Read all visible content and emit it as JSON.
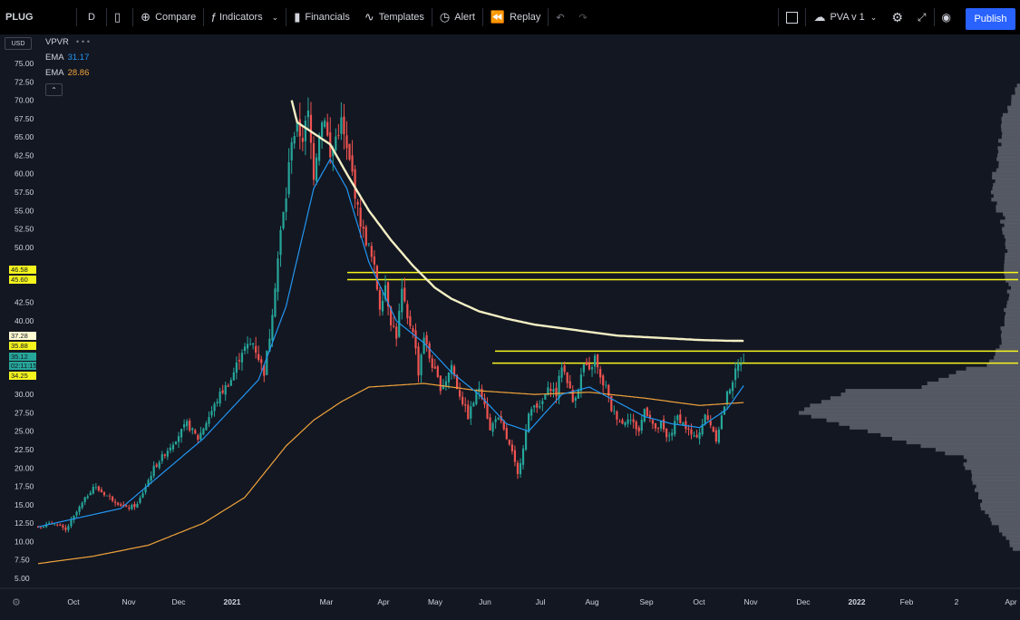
{
  "toolbar": {
    "symbol": "PLUG",
    "interval": "D",
    "compare": "Compare",
    "indicators": "Indicators",
    "financials": "Financials",
    "templates": "Templates",
    "alert": "Alert",
    "replay": "Replay",
    "layout_name": "PVA v 1",
    "publish": "Publish"
  },
  "legend": {
    "currency": "USD",
    "vpvr": "VPVR",
    "vpvr_dots": "• • •",
    "ema1_label": "EMA",
    "ema1_value": "31.17",
    "ema2_label": "EMA",
    "ema2_value": "28.86"
  },
  "price_tags": [
    {
      "text": "46.58",
      "price": 46.58,
      "bg": "#f5f51e"
    },
    {
      "text": "45.60",
      "price": 45.6,
      "bg": "#f5f51e"
    },
    {
      "text": "37.28",
      "price": 37.28,
      "bg": "#fffbd2"
    },
    {
      "text": "35.88",
      "price": 35.88,
      "bg": "#f5f51e"
    },
    {
      "text": "35.12",
      "price": 35.12,
      "bg": "#26a69a"
    },
    {
      "text": "02:11:15",
      "price": 34.0,
      "bg": "#26a69a"
    },
    {
      "text": "34.25",
      "price": 33.0,
      "bg": "#f5f51e"
    }
  ],
  "colors": {
    "bg": "#131722",
    "up": "#26a69a",
    "down": "#ef5350",
    "ema_fast": "#2196f3",
    "ema_slow": "#f0a33a",
    "sma_long": "#f3efc4",
    "hline": "#f5f51e",
    "vpvr": "#6b6f78"
  },
  "chart_data": {
    "type": "candlestick",
    "y_ticks": [
      "75.00",
      "72.50",
      "70.00",
      "67.50",
      "65.00",
      "62.50",
      "60.00",
      "57.50",
      "55.00",
      "52.50",
      "50.00",
      "42.50",
      "40.00",
      "30.00",
      "27.50",
      "25.00",
      "22.50",
      "20.00",
      "17.50",
      "15.00",
      "12.50",
      "10.00",
      "7.50",
      "5.00"
    ],
    "x_labels": [
      "Oct",
      "Nov",
      "Dec",
      "2021",
      "Mar",
      "Apr",
      "May",
      "Jun",
      "Jul",
      "Aug",
      "Sep",
      "Oct",
      "Nov",
      "Dec",
      "2022",
      "Feb",
      "2",
      "Apr"
    ],
    "ylim": [
      2.5,
      78
    ],
    "price_levels": [
      46.58,
      45.6,
      35.88,
      34.25
    ],
    "ema_fast_last": 31.17,
    "ema_slow_last": 28.86,
    "close_anchors": [
      [
        0,
        12
      ],
      [
        6,
        12.5
      ],
      [
        10,
        11.5
      ],
      [
        14,
        14
      ],
      [
        20,
        17.5
      ],
      [
        26,
        16
      ],
      [
        32,
        14.5
      ],
      [
        36,
        15
      ],
      [
        42,
        20
      ],
      [
        48,
        23
      ],
      [
        54,
        26
      ],
      [
        58,
        24
      ],
      [
        62,
        27
      ],
      [
        66,
        30
      ],
      [
        70,
        32
      ],
      [
        74,
        36
      ],
      [
        78,
        37
      ],
      [
        82,
        33
      ],
      [
        84,
        38
      ],
      [
        86,
        45
      ],
      [
        88,
        52
      ],
      [
        90,
        57
      ],
      [
        92,
        65
      ],
      [
        94,
        66
      ],
      [
        96,
        65
      ],
      [
        98,
        68
      ],
      [
        100,
        60
      ],
      [
        102,
        66
      ],
      [
        104,
        68
      ],
      [
        106,
        62
      ],
      [
        108,
        65
      ],
      [
        110,
        67
      ],
      [
        112,
        63
      ],
      [
        114,
        60
      ],
      [
        116,
        55
      ],
      [
        118,
        52
      ],
      [
        120,
        50
      ],
      [
        122,
        47
      ],
      [
        124,
        42
      ],
      [
        126,
        45
      ],
      [
        128,
        40
      ],
      [
        130,
        38
      ],
      [
        132,
        44
      ],
      [
        134,
        40
      ],
      [
        136,
        39
      ],
      [
        138,
        33
      ],
      [
        140,
        38
      ],
      [
        142,
        35
      ],
      [
        144,
        33
      ],
      [
        146,
        31
      ],
      [
        148,
        32
      ],
      [
        150,
        34
      ],
      [
        152,
        31
      ],
      [
        154,
        29
      ],
      [
        156,
        27
      ],
      [
        158,
        29
      ],
      [
        160,
        31
      ],
      [
        162,
        29
      ],
      [
        164,
        25
      ],
      [
        166,
        27
      ],
      [
        168,
        26
      ],
      [
        170,
        24
      ],
      [
        172,
        22
      ],
      [
        174,
        19
      ],
      [
        176,
        23
      ],
      [
        178,
        27
      ],
      [
        180,
        29
      ],
      [
        182,
        28
      ],
      [
        184,
        30
      ],
      [
        186,
        31
      ],
      [
        188,
        30
      ],
      [
        190,
        34
      ],
      [
        192,
        32
      ],
      [
        194,
        29
      ],
      [
        196,
        31
      ],
      [
        198,
        34
      ],
      [
        200,
        33
      ],
      [
        202,
        35
      ],
      [
        204,
        32
      ],
      [
        206,
        31
      ],
      [
        208,
        28
      ],
      [
        210,
        27
      ],
      [
        212,
        26
      ],
      [
        214,
        27
      ],
      [
        216,
        26
      ],
      [
        218,
        25
      ],
      [
        220,
        28
      ],
      [
        222,
        27
      ],
      [
        224,
        25
      ],
      [
        226,
        26
      ],
      [
        228,
        24
      ],
      [
        230,
        25
      ],
      [
        232,
        27
      ],
      [
        234,
        26
      ],
      [
        236,
        25
      ],
      [
        238,
        24
      ],
      [
        240,
        25
      ],
      [
        242,
        27
      ],
      [
        244,
        26
      ],
      [
        246,
        24
      ],
      [
        248,
        27
      ],
      [
        250,
        30
      ],
      [
        252,
        32
      ],
      [
        254,
        34
      ],
      [
        256,
        35
      ]
    ],
    "ema_fast_anchors": [
      [
        0,
        12
      ],
      [
        30,
        14.5
      ],
      [
        60,
        24
      ],
      [
        80,
        32
      ],
      [
        90,
        42
      ],
      [
        100,
        58
      ],
      [
        106,
        62
      ],
      [
        112,
        58
      ],
      [
        120,
        48
      ],
      [
        130,
        40
      ],
      [
        140,
        37
      ],
      [
        150,
        33
      ],
      [
        160,
        30
      ],
      [
        170,
        26
      ],
      [
        178,
        25
      ],
      [
        190,
        30
      ],
      [
        200,
        31
      ],
      [
        210,
        29
      ],
      [
        220,
        27
      ],
      [
        230,
        26
      ],
      [
        240,
        25.5
      ],
      [
        250,
        28
      ],
      [
        256,
        31.2
      ]
    ],
    "ema_slow_anchors": [
      [
        0,
        7
      ],
      [
        20,
        8
      ],
      [
        40,
        9.5
      ],
      [
        60,
        12.5
      ],
      [
        75,
        16
      ],
      [
        90,
        23
      ],
      [
        100,
        26.5
      ],
      [
        110,
        29
      ],
      [
        120,
        31
      ],
      [
        140,
        31.5
      ],
      [
        160,
        30.5
      ],
      [
        180,
        30
      ],
      [
        200,
        30.3
      ],
      [
        220,
        29.5
      ],
      [
        240,
        28.5
      ],
      [
        256,
        28.9
      ]
    ],
    "sma_long_anchors": [
      [
        92,
        70
      ],
      [
        94,
        67
      ],
      [
        100,
        65.5
      ],
      [
        106,
        64
      ],
      [
        112,
        60
      ],
      [
        120,
        55
      ],
      [
        128,
        51
      ],
      [
        136,
        47.5
      ],
      [
        144,
        44.5
      ],
      [
        150,
        43
      ],
      [
        160,
        41.3
      ],
      [
        170,
        40.3
      ],
      [
        180,
        39.5
      ],
      [
        190,
        39
      ],
      [
        200,
        38.5
      ],
      [
        210,
        38
      ],
      [
        220,
        37.8
      ],
      [
        230,
        37.6
      ],
      [
        240,
        37.4
      ],
      [
        250,
        37.3
      ],
      [
        256,
        37.28
      ]
    ]
  }
}
